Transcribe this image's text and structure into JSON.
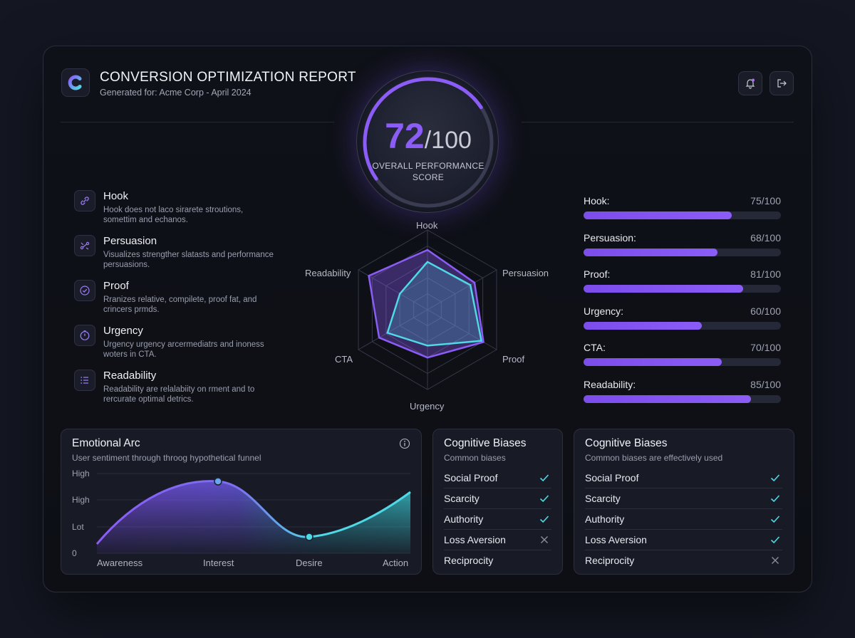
{
  "header": {
    "title": "CONVERSION OPTIMIZATION REPORT",
    "subtitle": "Generated for: Acme Corp - April 2024",
    "bell_icon": "bell-icon",
    "logout_icon": "logout-icon"
  },
  "score": {
    "value": "72",
    "max": "/100",
    "fraction": 0.72,
    "label_line1": "OVERALL PERFORMANCE",
    "label_line2": "SCORE"
  },
  "metrics": [
    {
      "title": "Hook",
      "desc": "Hook does not laco sirarete stroutions, somettim and echanos.",
      "icon": "link-icon"
    },
    {
      "title": "Persuasion",
      "desc": "Visualizes strengther slatasts and performance persuasions.",
      "icon": "flow-icon"
    },
    {
      "title": "Proof",
      "desc": "Rranizes relative, compilete, proof fat, and crincers prmds.",
      "icon": "check-circle-icon"
    },
    {
      "title": "Urgency",
      "desc": "Urgency urgency arcermediatrs and inoness woters in CTA.",
      "icon": "clock-icon"
    },
    {
      "title": "Readability",
      "desc": "Readability are relalabiity on rment and to rercurate optimal detrics.",
      "icon": "list-icon"
    }
  ],
  "radar": {
    "axes": [
      "Hook",
      "Persuasion",
      "Proof",
      "Urgency",
      "CTA",
      "Readability"
    ],
    "series": [
      {
        "values": [
          75,
          68,
          81,
          60,
          70,
          85
        ],
        "color": "#8b5cf6"
      },
      {
        "values": [
          60,
          62,
          78,
          45,
          58,
          40
        ],
        "color": "#4fd8e6"
      }
    ],
    "max": 100
  },
  "scores": [
    {
      "label": "Hook:",
      "value": "75/100",
      "fraction": 0.75
    },
    {
      "label": "Persuasion:",
      "value": "68/100",
      "fraction": 0.68
    },
    {
      "label": "Proof:",
      "value": "81/100",
      "fraction": 0.81
    },
    {
      "label": "Urgency:",
      "value": "60/100",
      "fraction": 0.6
    },
    {
      "label": "CTA:",
      "value": "70/100",
      "fraction": 0.7
    },
    {
      "label": "Readability:",
      "value": "85/100",
      "fraction": 0.85
    }
  ],
  "arc": {
    "title": "Emotional Arc",
    "subtitle": "User sentiment through throog hypothetical funnel",
    "info_icon": "info-icon",
    "y_labels": [
      "High",
      "High",
      "Lot",
      "0"
    ],
    "x_labels": [
      "Awareness",
      "Interest",
      "Desire",
      "Action"
    ]
  },
  "biases_left": {
    "title": "Cognitive Biases",
    "subtitle": "Common biases",
    "items": [
      {
        "name": "Social Proof",
        "status": "check"
      },
      {
        "name": "Scarcity",
        "status": "check"
      },
      {
        "name": "Authority",
        "status": "check"
      },
      {
        "name": "Loss Aversion",
        "status": "cross"
      },
      {
        "name": "Reciprocity",
        "status": "none"
      }
    ]
  },
  "biases_right": {
    "title": "Cognitive Biases",
    "subtitle": "Common biases are effectively used",
    "items": [
      {
        "name": "Social Proof",
        "status": "check"
      },
      {
        "name": "Scarcity",
        "status": "check"
      },
      {
        "name": "Authority",
        "status": "check"
      },
      {
        "name": "Loss Aversion",
        "status": "check"
      },
      {
        "name": "Reciprocity",
        "status": "cross"
      }
    ]
  },
  "colors": {
    "accent": "#8b5cf6",
    "teal": "#4fd8e6",
    "check": "#4fd8e6",
    "cross": "#8a8e9c"
  }
}
